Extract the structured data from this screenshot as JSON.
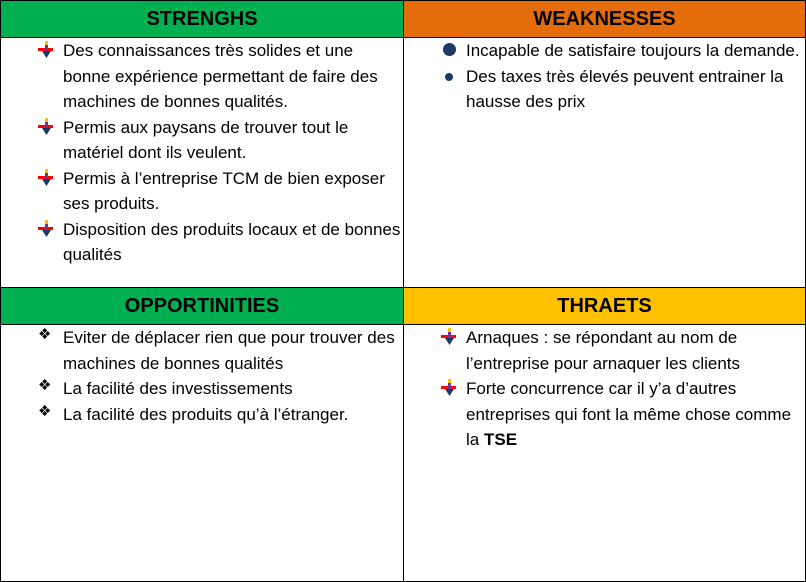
{
  "quadrants": {
    "strengths": {
      "title": "STRENGHS",
      "color": "#00b050",
      "items": [
        "Des connaissances très solides et une bonne expérience permettant de faire des machines de bonnes qualités.",
        "Permis aux paysans de trouver tout le matériel dont ils veulent.",
        "Permis à l’entreprise TCM de bien exposer ses produits.",
        "Disposition des produits locaux et de bonnes qualités"
      ],
      "bullet_icon": "arrow-bullet-icon"
    },
    "weaknesses": {
      "title": "WEAKNESSES",
      "color": "#e46c0a",
      "items": [
        "Incapable de satisfaire toujours la demande.",
        "Des taxes très élevés peuvent entrainer la hausse des prix"
      ],
      "bullet_icon": "circle-bullet-icon"
    },
    "opportunities": {
      "title": "OPPORTINITIES",
      "color": "#00b050",
      "items": [
        "Eviter de déplacer rien que pour trouver des machines de bonnes qualités",
        "La facilité des investissements",
        "La facilité des produits qu’à l’étranger."
      ],
      "bullet_icon": "diamond-bullet-icon"
    },
    "threats": {
      "title": "THRAETS",
      "color": "#ffc000",
      "items": [
        "Arnaques : se répondant au nom de l’entreprise pour arnaquer les clients"
      ],
      "last_item_prefix": "Forte concurrence car il y’a d’autres entreprises qui font la même chose comme la ",
      "last_item_bold": "TSE",
      "bullet_icon": "arrow-bullet-icon"
    }
  }
}
